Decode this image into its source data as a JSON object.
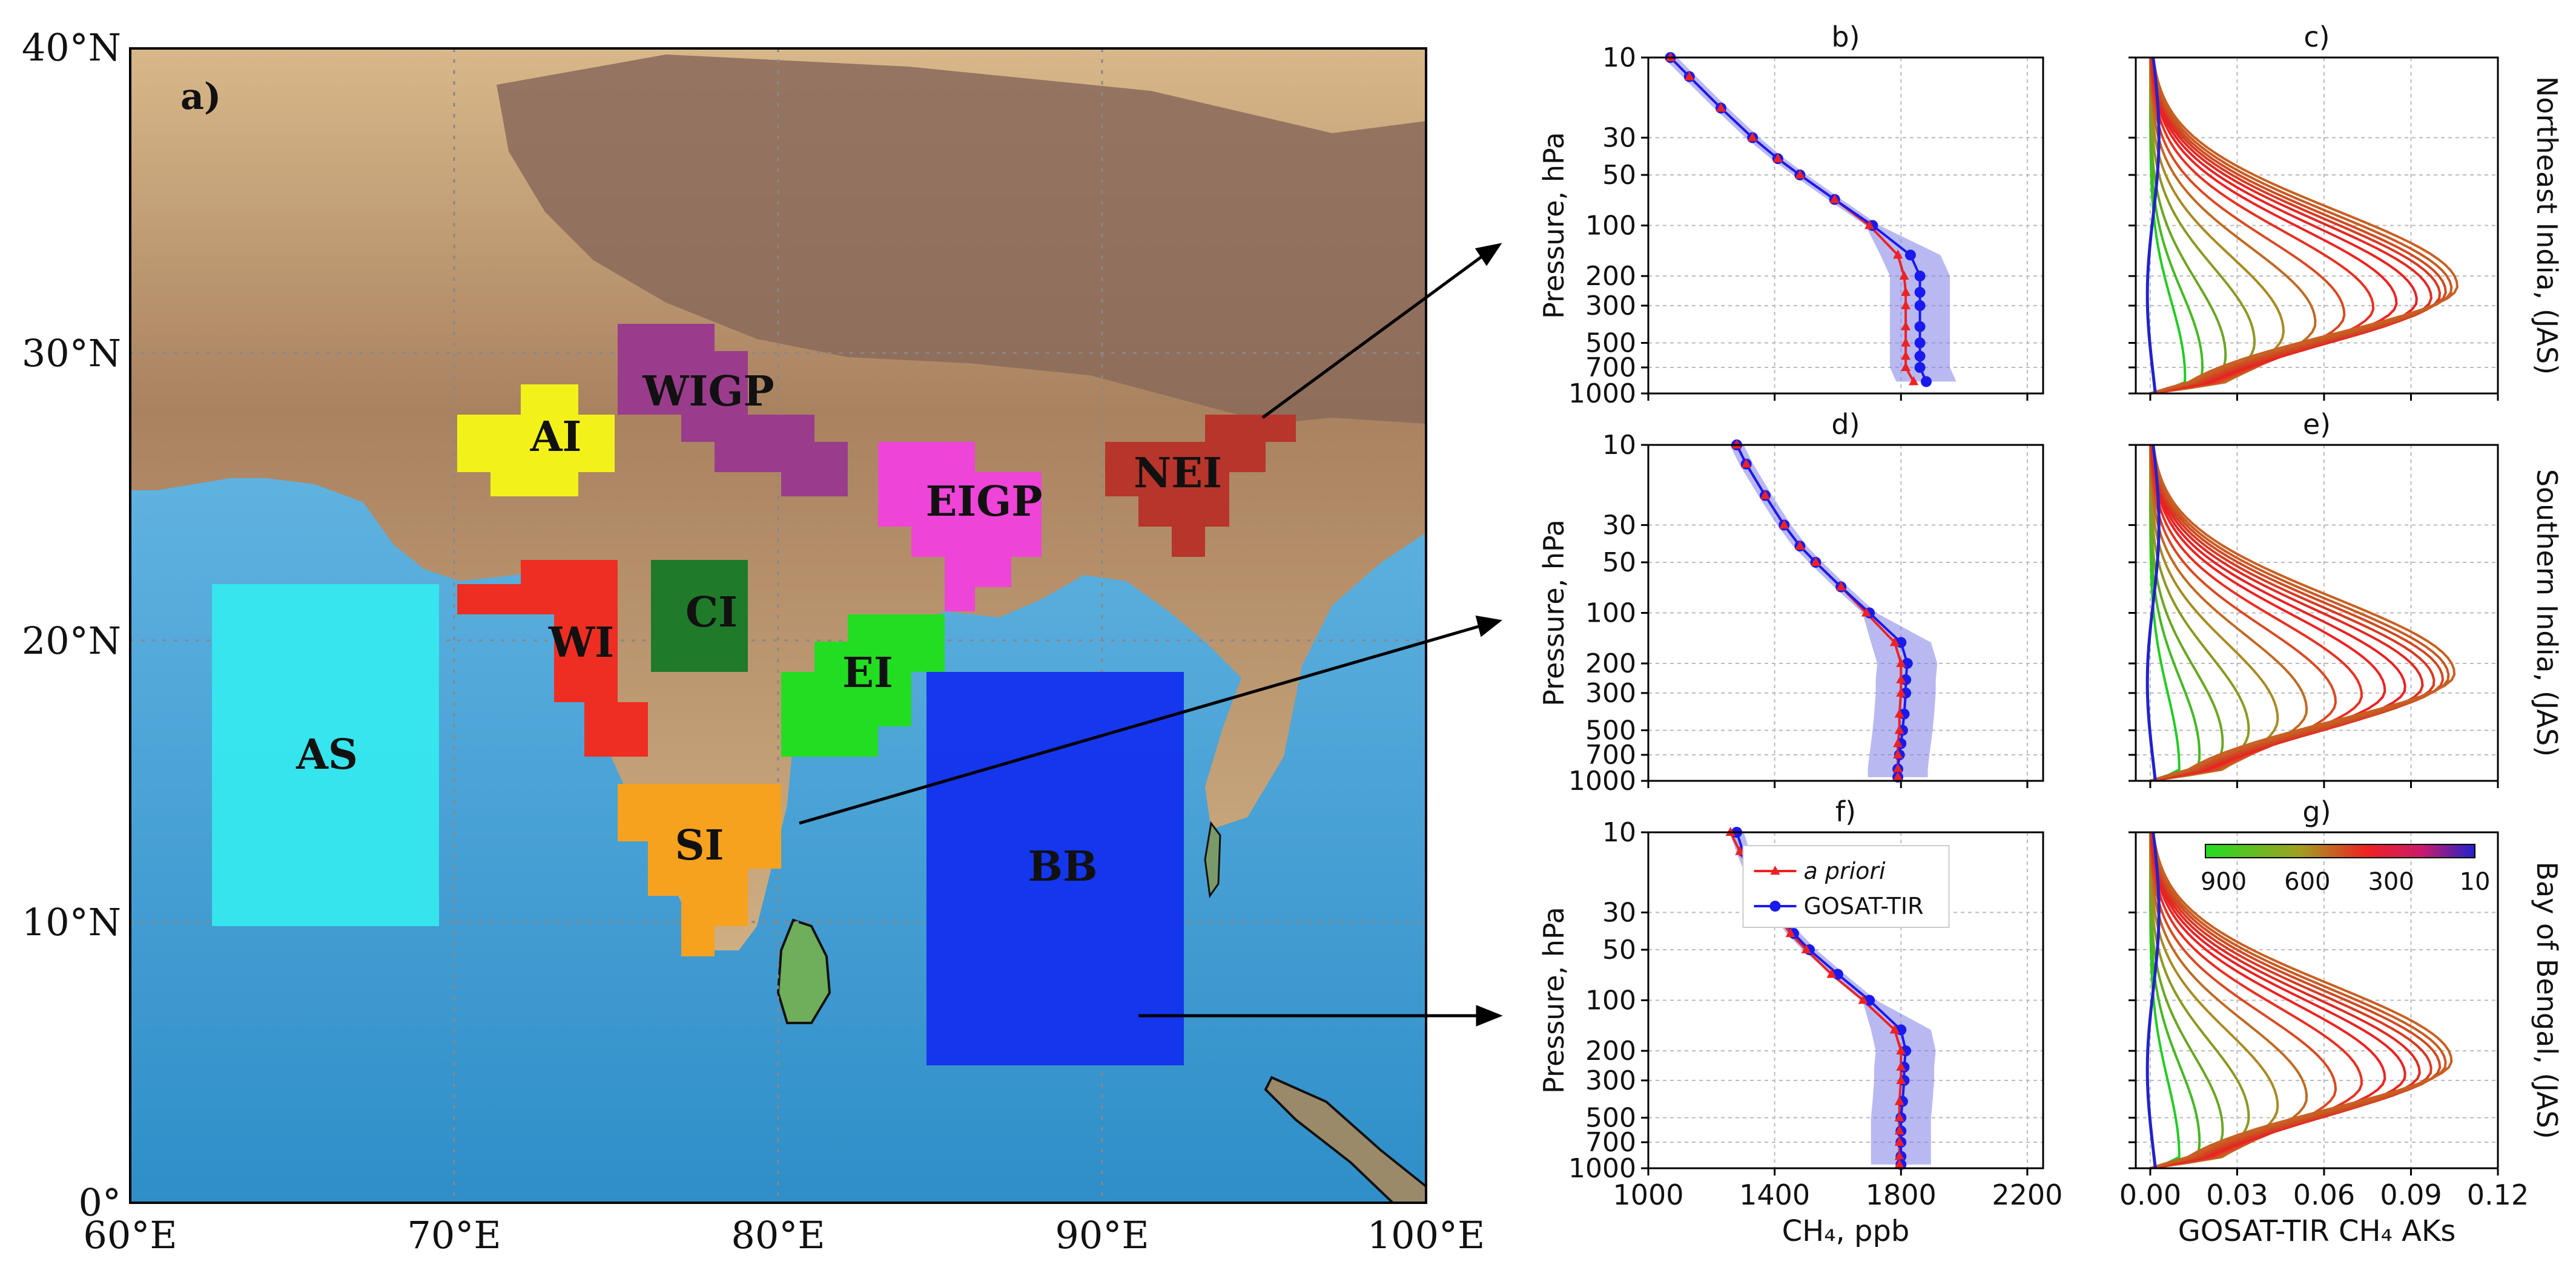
{
  "map": {
    "panel_label": "a)",
    "x_ticks": [
      "60°E",
      "70°E",
      "80°E",
      "90°E",
      "100°E"
    ],
    "y_ticks": [
      "0°",
      "10°N",
      "20°N",
      "30°N",
      "40°N"
    ],
    "regions": [
      {
        "id": "AI",
        "label": "AI",
        "color": "#f2f21a"
      },
      {
        "id": "WIGP",
        "label": "WIGP",
        "color": "#9a3c8c"
      },
      {
        "id": "EIGP",
        "label": "EIGP",
        "color": "#ee44d8"
      },
      {
        "id": "NEI",
        "label": "NEI",
        "color": "#b8352b"
      },
      {
        "id": "CI",
        "label": "CI",
        "color": "#1f7a2a"
      },
      {
        "id": "WI",
        "label": "WI",
        "color": "#ee2e22"
      },
      {
        "id": "EI",
        "label": "EI",
        "color": "#22dd22"
      },
      {
        "id": "SI",
        "label": "SI",
        "color": "#f7a21e"
      },
      {
        "id": "AS",
        "label": "AS",
        "color": "#35e8ee"
      },
      {
        "id": "BB",
        "label": "BB",
        "color": "#1230ee"
      }
    ]
  },
  "profiles": {
    "panel_labels": [
      "b)",
      "d)",
      "f)"
    ],
    "ylabel": "Pressure, hPa",
    "xlabel": "CH₄, ppb",
    "x_ticks": [
      "1000",
      "1400",
      "1800",
      "2200"
    ],
    "y_ticks": [
      "10",
      "30",
      "50",
      "100",
      "200",
      "300",
      "500",
      "700",
      "1000"
    ],
    "legend": {
      "apriori": "a priori",
      "gosat": "GOSAT-TIR"
    }
  },
  "aks": {
    "panel_labels": [
      "c)",
      "e)",
      "g)"
    ],
    "xlabel": "GOSAT-TIR CH₄ AKs",
    "x_ticks": [
      "0.00",
      "0.03",
      "0.06",
      "0.09",
      "0.12"
    ],
    "colorbar_ticks": [
      "900",
      "600",
      "300",
      "10"
    ]
  },
  "row_labels": [
    "Northeast India, (JAS)",
    "Southern India, (JAS)",
    "Bay of Bengal, (JAS)"
  ],
  "colors": {
    "apriori": "#ee2222",
    "gosat": "#1a1aee",
    "envelope": "#7f7fe8",
    "ocean": "#56b4e4",
    "land": "#c9a77e"
  },
  "chart_data": [
    {
      "type": "line",
      "panel": "b",
      "title": "b)",
      "xlabel": "CH₄, ppb",
      "ylabel": "Pressure, hPa",
      "xlim": [
        1000,
        2250
      ],
      "ylim": [
        1000,
        10
      ],
      "y_scale": "log",
      "pressure": [
        10,
        13,
        20,
        30,
        40,
        50,
        70,
        100,
        150,
        200,
        250,
        300,
        400,
        500,
        600,
        700,
        850
      ],
      "series": [
        {
          "name": "a priori",
          "values": [
            1070,
            1130,
            1230,
            1330,
            1410,
            1480,
            1590,
            1700,
            1790,
            1810,
            1815,
            1815,
            1815,
            1815,
            1815,
            1815,
            1840
          ]
        },
        {
          "name": "GOSAT-TIR",
          "values": [
            1070,
            1130,
            1230,
            1330,
            1410,
            1480,
            1590,
            1710,
            1830,
            1860,
            1860,
            1860,
            1860,
            1860,
            1860,
            1860,
            1880
          ]
        }
      ]
    },
    {
      "type": "line",
      "panel": "d",
      "title": "d)",
      "xlabel": "CH₄, ppb",
      "ylabel": "Pressure, hPa",
      "xlim": [
        1000,
        2250
      ],
      "ylim": [
        1000,
        10
      ],
      "y_scale": "log",
      "pressure": [
        10,
        13,
        20,
        30,
        40,
        50,
        70,
        100,
        150,
        200,
        250,
        300,
        400,
        500,
        600,
        700,
        850,
        950
      ],
      "series": [
        {
          "name": "a priori",
          "values": [
            1280,
            1310,
            1370,
            1430,
            1480,
            1530,
            1610,
            1690,
            1780,
            1800,
            1800,
            1800,
            1795,
            1795,
            1790,
            1790,
            1790,
            1790
          ]
        },
        {
          "name": "GOSAT-TIR",
          "values": [
            1280,
            1310,
            1370,
            1430,
            1480,
            1530,
            1610,
            1700,
            1800,
            1820,
            1815,
            1815,
            1810,
            1805,
            1800,
            1795,
            1790,
            1790
          ]
        }
      ]
    },
    {
      "type": "line",
      "panel": "f",
      "title": "f)",
      "xlabel": "CH₄, ppb",
      "ylabel": "Pressure, hPa",
      "xlim": [
        1000,
        2250
      ],
      "ylim": [
        1000,
        10
      ],
      "y_scale": "log",
      "pressure": [
        10,
        13,
        20,
        30,
        40,
        50,
        70,
        100,
        150,
        200,
        250,
        300,
        400,
        500,
        600,
        700,
        850,
        950
      ],
      "series": [
        {
          "name": "a priori",
          "values": [
            1260,
            1290,
            1340,
            1400,
            1450,
            1500,
            1580,
            1680,
            1780,
            1800,
            1800,
            1800,
            1795,
            1795,
            1795,
            1795,
            1795,
            1795
          ]
        },
        {
          "name": "GOSAT-TIR",
          "values": [
            1280,
            1300,
            1340,
            1410,
            1460,
            1510,
            1600,
            1700,
            1800,
            1815,
            1810,
            1810,
            1805,
            1800,
            1800,
            1800,
            1800,
            1800
          ]
        }
      ]
    },
    {
      "type": "line",
      "panel": "c",
      "title": "c)",
      "xlabel": "GOSAT-TIR CH₄ AKs",
      "xlim": [
        -0.005,
        0.12
      ],
      "ylim": [
        1000,
        10
      ],
      "y_scale": "log",
      "colorbar": {
        "label_ticks": [
          900,
          600,
          300,
          10
        ]
      },
      "curves": [
        {
          "peak_pressure": 800,
          "peak_value": 0.012
        },
        {
          "peak_pressure": 700,
          "peak_value": 0.018
        },
        {
          "peak_pressure": 600,
          "peak_value": 0.026
        },
        {
          "peak_pressure": 500,
          "peak_value": 0.036
        },
        {
          "peak_pressure": 430,
          "peak_value": 0.046
        },
        {
          "peak_pressure": 380,
          "peak_value": 0.057
        },
        {
          "peak_pressure": 340,
          "peak_value": 0.067
        },
        {
          "peak_pressure": 310,
          "peak_value": 0.077
        },
        {
          "peak_pressure": 290,
          "peak_value": 0.085
        },
        {
          "peak_pressure": 280,
          "peak_value": 0.092
        },
        {
          "peak_pressure": 270,
          "peak_value": 0.097
        },
        {
          "peak_pressure": 260,
          "peak_value": 0.1
        },
        {
          "peak_pressure": 250,
          "peak_value": 0.102
        },
        {
          "peak_pressure": 240,
          "peak_value": 0.104
        },
        {
          "peak_pressure": 230,
          "peak_value": 0.106
        }
      ]
    },
    {
      "type": "line",
      "panel": "e",
      "title": "e)",
      "xlabel": "GOSAT-TIR CH₄ AKs",
      "xlim": [
        -0.005,
        0.12
      ],
      "ylim": [
        1000,
        10
      ],
      "y_scale": "log",
      "curves": [
        {
          "peak_pressure": 850,
          "peak_value": 0.01
        },
        {
          "peak_pressure": 700,
          "peak_value": 0.017
        },
        {
          "peak_pressure": 600,
          "peak_value": 0.025
        },
        {
          "peak_pressure": 500,
          "peak_value": 0.034
        },
        {
          "peak_pressure": 430,
          "peak_value": 0.044
        },
        {
          "peak_pressure": 380,
          "peak_value": 0.054
        },
        {
          "peak_pressure": 340,
          "peak_value": 0.064
        },
        {
          "peak_pressure": 310,
          "peak_value": 0.073
        },
        {
          "peak_pressure": 290,
          "peak_value": 0.081
        },
        {
          "peak_pressure": 280,
          "peak_value": 0.088
        },
        {
          "peak_pressure": 270,
          "peak_value": 0.094
        },
        {
          "peak_pressure": 260,
          "peak_value": 0.098
        },
        {
          "peak_pressure": 250,
          "peak_value": 0.101
        },
        {
          "peak_pressure": 240,
          "peak_value": 0.103
        },
        {
          "peak_pressure": 230,
          "peak_value": 0.105
        }
      ]
    },
    {
      "type": "line",
      "panel": "g",
      "title": "g)",
      "xlabel": "GOSAT-TIR CH₄ AKs",
      "xlim": [
        -0.005,
        0.12
      ],
      "ylim": [
        1000,
        10
      ],
      "y_scale": "log",
      "colorbar": {
        "label_ticks": [
          900,
          600,
          300,
          10
        ]
      },
      "curves": [
        {
          "peak_pressure": 850,
          "peak_value": 0.01
        },
        {
          "peak_pressure": 700,
          "peak_value": 0.017
        },
        {
          "peak_pressure": 600,
          "peak_value": 0.025
        },
        {
          "peak_pressure": 500,
          "peak_value": 0.034
        },
        {
          "peak_pressure": 430,
          "peak_value": 0.044
        },
        {
          "peak_pressure": 380,
          "peak_value": 0.054
        },
        {
          "peak_pressure": 340,
          "peak_value": 0.064
        },
        {
          "peak_pressure": 310,
          "peak_value": 0.073
        },
        {
          "peak_pressure": 290,
          "peak_value": 0.081
        },
        {
          "peak_pressure": 280,
          "peak_value": 0.088
        },
        {
          "peak_pressure": 270,
          "peak_value": 0.093
        },
        {
          "peak_pressure": 260,
          "peak_value": 0.097
        },
        {
          "peak_pressure": 250,
          "peak_value": 0.1
        },
        {
          "peak_pressure": 240,
          "peak_value": 0.102
        },
        {
          "peak_pressure": 230,
          "peak_value": 0.104
        }
      ]
    }
  ]
}
